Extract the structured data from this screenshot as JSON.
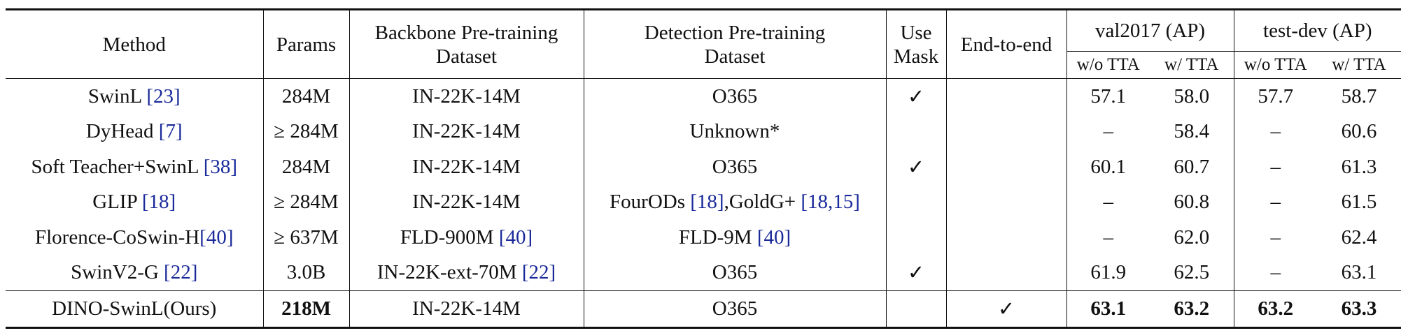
{
  "header": {
    "columns": [
      {
        "lines": [
          "Method"
        ]
      },
      {
        "lines": [
          "Params"
        ]
      },
      {
        "lines": [
          "Backbone Pre-training",
          "Dataset"
        ]
      },
      {
        "lines": [
          "Detection Pre-training",
          "Dataset"
        ]
      },
      {
        "lines": [
          "Use",
          "Mask"
        ]
      },
      {
        "lines": [
          "End-to-end"
        ]
      },
      {
        "lines": [
          "val2017 (AP)"
        ],
        "span": 2
      },
      {
        "lines": [
          "test-dev (AP)"
        ],
        "span": 2
      }
    ],
    "subcolumns": [
      "w/o TTA",
      "w/ TTA",
      "w/o TTA",
      "w/ TTA"
    ]
  },
  "table": {
    "rows": [
      {
        "cells": [
          [
            {
              "text": "SwinL "
            },
            {
              "cite": "[23]"
            }
          ],
          [
            {
              "text": "284M"
            }
          ],
          [
            {
              "text": "IN-22K-14M"
            }
          ],
          [
            {
              "text": "O365"
            }
          ],
          [
            {
              "text": "✓"
            }
          ],
          [],
          [
            {
              "text": "57.1"
            }
          ],
          [
            {
              "text": "58.0"
            }
          ],
          [
            {
              "text": "57.7"
            }
          ],
          [
            {
              "text": "58.7"
            }
          ]
        ]
      },
      {
        "cells": [
          [
            {
              "text": "DyHead "
            },
            {
              "cite": "[7]"
            }
          ],
          [
            {
              "text": "≥ 284M"
            }
          ],
          [
            {
              "text": "IN-22K-14M"
            }
          ],
          [
            {
              "text": "Unknown*"
            }
          ],
          [],
          [],
          [
            {
              "text": "–"
            }
          ],
          [
            {
              "text": "58.4"
            }
          ],
          [
            {
              "text": "–"
            }
          ],
          [
            {
              "text": "60.6"
            }
          ]
        ]
      },
      {
        "cells": [
          [
            {
              "text": "Soft Teacher+SwinL "
            },
            {
              "cite": "[38]"
            }
          ],
          [
            {
              "text": "284M"
            }
          ],
          [
            {
              "text": "IN-22K-14M"
            }
          ],
          [
            {
              "text": "O365"
            }
          ],
          [
            {
              "text": "✓"
            }
          ],
          [],
          [
            {
              "text": "60.1"
            }
          ],
          [
            {
              "text": "60.7"
            }
          ],
          [
            {
              "text": "–"
            }
          ],
          [
            {
              "text": "61.3"
            }
          ]
        ]
      },
      {
        "cells": [
          [
            {
              "text": "GLIP "
            },
            {
              "cite": "[18]"
            }
          ],
          [
            {
              "text": "≥ 284M"
            }
          ],
          [
            {
              "text": "IN-22K-14M"
            }
          ],
          [
            {
              "text": "FourODs "
            },
            {
              "cite": "[18]"
            },
            {
              "text": ",GoldG+ "
            },
            {
              "cite": "[18,15]"
            }
          ],
          [],
          [],
          [
            {
              "text": "–"
            }
          ],
          [
            {
              "text": "60.8"
            }
          ],
          [
            {
              "text": "–"
            }
          ],
          [
            {
              "text": "61.5"
            }
          ]
        ]
      },
      {
        "cells": [
          [
            {
              "text": "Florence-CoSwin-H"
            },
            {
              "cite": "[40]"
            }
          ],
          [
            {
              "text": "≥ 637M"
            }
          ],
          [
            {
              "text": "FLD-900M "
            },
            {
              "cite": "[40]"
            }
          ],
          [
            {
              "text": "FLD-9M "
            },
            {
              "cite": "[40]"
            }
          ],
          [],
          [],
          [
            {
              "text": "–"
            }
          ],
          [
            {
              "text": "62.0"
            }
          ],
          [
            {
              "text": "–"
            }
          ],
          [
            {
              "text": "62.4"
            }
          ]
        ]
      },
      {
        "cells": [
          [
            {
              "text": "SwinV2-G "
            },
            {
              "cite": "[22]"
            }
          ],
          [
            {
              "text": "3.0B"
            }
          ],
          [
            {
              "text": "IN-22K-ext-70M "
            },
            {
              "cite": "[22]"
            }
          ],
          [
            {
              "text": "O365"
            }
          ],
          [
            {
              "text": "✓"
            }
          ],
          [],
          [
            {
              "text": "61.9"
            }
          ],
          [
            {
              "text": "62.5"
            }
          ],
          [
            {
              "text": "–"
            }
          ],
          [
            {
              "text": "63.1"
            }
          ]
        ]
      },
      {
        "rule_above": true,
        "cells": [
          [
            {
              "text": "DINO-SwinL(Ours)"
            }
          ],
          [
            {
              "text": "218M",
              "bold": true
            }
          ],
          [
            {
              "text": "IN-22K-14M"
            }
          ],
          [
            {
              "text": "O365"
            }
          ],
          [],
          [
            {
              "text": "✓"
            }
          ],
          [
            {
              "text": "63.1",
              "bold": true
            }
          ],
          [
            {
              "text": "63.2",
              "bold": true
            }
          ],
          [
            {
              "text": "63.2",
              "bold": true
            }
          ],
          [
            {
              "text": "63.3",
              "bold": true
            }
          ]
        ]
      }
    ]
  }
}
